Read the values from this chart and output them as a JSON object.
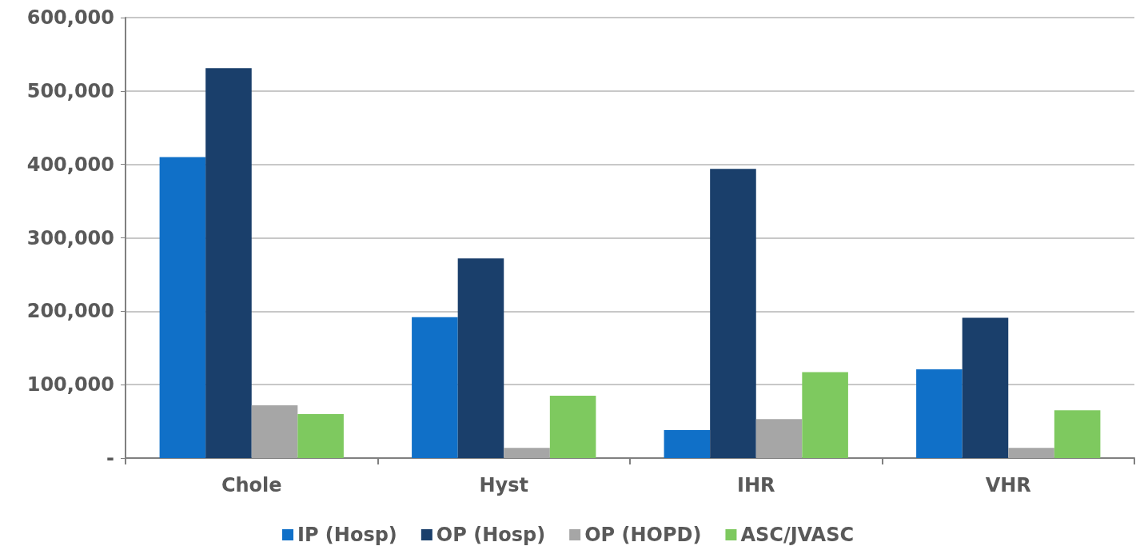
{
  "chart_data": {
    "type": "bar",
    "categories": [
      "Chole",
      "Hyst",
      "IHR",
      "VHR"
    ],
    "series": [
      {
        "name": "IP (Hosp)",
        "color": "#1070c8",
        "values": [
          410000,
          192000,
          38000,
          121000
        ]
      },
      {
        "name": "OP (Hosp)",
        "color": "#1a3f6b",
        "values": [
          531000,
          272000,
          394000,
          191000
        ]
      },
      {
        "name": "OP (HOPD)",
        "color": "#a6a6a6",
        "values": [
          72000,
          14000,
          53000,
          14000
        ]
      },
      {
        "name": "ASC/JVASC",
        "color": "#7ec95f",
        "values": [
          60000,
          85000,
          117000,
          65000
        ]
      }
    ],
    "ylim": [
      0,
      600000
    ],
    "yticks": [
      {
        "value": 0,
        "label": "-"
      },
      {
        "value": 100000,
        "label": "100,000"
      },
      {
        "value": 200000,
        "label": "200,000"
      },
      {
        "value": 300000,
        "label": "300,000"
      },
      {
        "value": 400000,
        "label": "400,000"
      },
      {
        "value": 500000,
        "label": "500,000"
      },
      {
        "value": 600000,
        "label": "600,000"
      }
    ],
    "grid": "y",
    "legend": "bottom"
  }
}
